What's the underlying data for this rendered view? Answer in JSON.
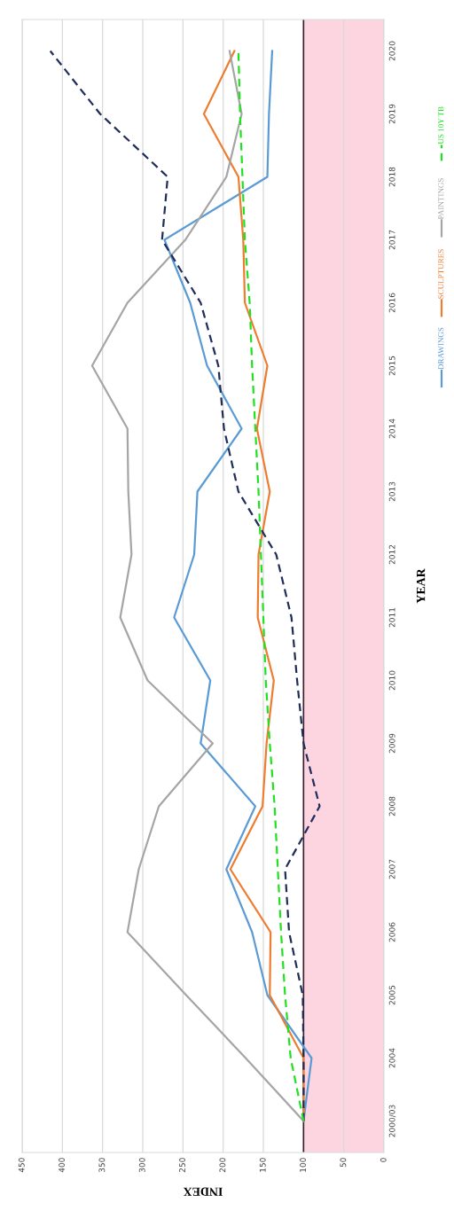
{
  "chart_data": {
    "type": "line",
    "xlabel": "INDEX",
    "ylabel": "YEAR",
    "series": [
      {
        "name": "DRAWINGS",
        "color": "#5b9bd5",
        "line_style": "solid",
        "x": [
          100,
          90,
          145,
          164,
          196,
          160,
          228,
          216,
          261,
          236,
          232,
          177,
          220,
          241,
          273,
          145,
          143,
          139
        ],
        "values": [
          2003,
          2004,
          2005,
          2006,
          2007,
          2008,
          2009,
          2010,
          2011,
          2012,
          2013,
          2014,
          2015,
          2016,
          2017,
          2018,
          2019,
          2020
        ]
      },
      {
        "name": "SCULPTURES",
        "color": "#ed7d31",
        "line_style": "solid",
        "x": [
          100,
          100,
          142,
          141,
          191,
          151,
          146,
          137,
          157,
          156,
          142,
          158,
          145,
          173,
          175,
          181,
          224,
          186
        ],
        "values": [
          2003,
          2004,
          2005,
          2006,
          2007,
          2008,
          2009,
          2010,
          2011,
          2012,
          2013,
          2014,
          2015,
          2016,
          2017,
          2018,
          2019,
          2020
        ]
      },
      {
        "name": "PAINTINGS",
        "color": "#a5a5a5",
        "line_style": "solid",
        "x": [
          100,
          172,
          246,
          319,
          305,
          280,
          213,
          294,
          328,
          314,
          318,
          319,
          363,
          319,
          247,
          196,
          177,
          192
        ],
        "values": [
          2003,
          2004,
          2005,
          2006,
          2007,
          2008,
          2009,
          2010,
          2011,
          2012,
          2013,
          2014,
          2015,
          2016,
          2017,
          2018,
          2019,
          2020
        ]
      },
      {
        "color": "#1f2d5a",
        "line_style": "dashed",
        "x": [
          100,
          100,
          101,
          118,
          123,
          80,
          100,
          108,
          115,
          134,
          181,
          199,
          206,
          228,
          276,
          269,
          353,
          415
        ],
        "values": [
          2003,
          2004,
          2005,
          2006,
          2007,
          2008,
          2009,
          2010,
          2011,
          2012,
          2013,
          2014,
          2015,
          2016,
          2017,
          2018,
          2019,
          2020
        ]
      },
      {
        "name": "US 10Y TB",
        "color": "#22e022",
        "line_style": "dashed",
        "x": [
          100,
          116,
          123,
          128,
          132,
          136,
          142,
          147,
          150,
          153,
          156,
          160,
          164,
          167,
          173,
          176,
          179,
          181
        ],
        "values": [
          2003,
          2004,
          2005,
          2006,
          2007,
          2008,
          2009,
          2010,
          2011,
          2012,
          2013,
          2014,
          2015,
          2016,
          2017,
          2018,
          2019,
          2020
        ]
      }
    ],
    "xlim": [
      450,
      0
    ],
    "xticks": [
      450,
      400,
      350,
      300,
      250,
      200,
      150,
      100,
      50,
      0
    ],
    "ylim": [
      2002.5,
      2020.5
    ],
    "yticks": [
      {
        "value": 2003,
        "label": "2000/03"
      },
      2004,
      2005,
      2006,
      2007,
      2008,
      2009,
      2010,
      2011,
      2012,
      2013,
      2014,
      2015,
      2016,
      2017,
      2018,
      2019,
      2020
    ],
    "bands": [
      {
        "axis": "x",
        "from": 0,
        "to": 100,
        "color": "#fcd5e1"
      }
    ],
    "ref_lines": [
      {
        "axis": "x",
        "value": 100,
        "color": "#3d2030"
      }
    ],
    "grid": "x",
    "legend": "right",
    "marker": "none"
  }
}
